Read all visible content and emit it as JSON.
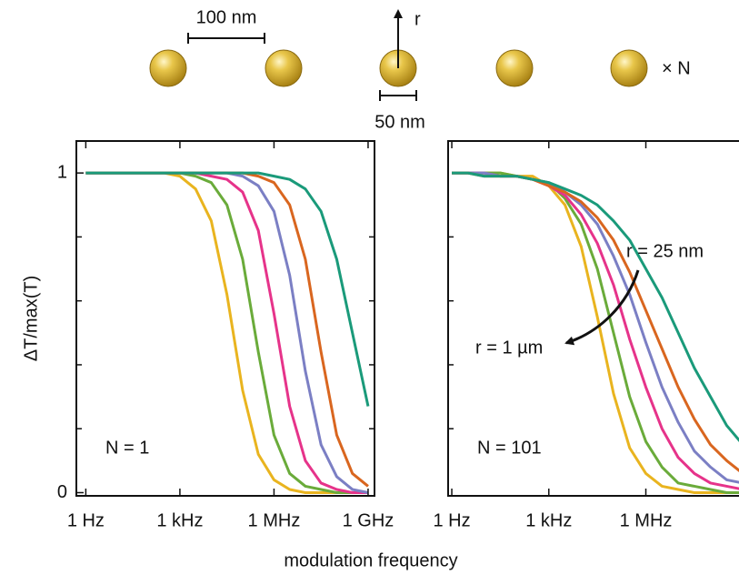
{
  "diagram": {
    "spacing_label": "100 nm",
    "diameter_label": "50 nm",
    "radius_label": "r",
    "count_label": "× N"
  },
  "chart_data": [
    {
      "type": "line",
      "ylabel": "ΔT/max(T)",
      "xlabel": "modulation frequency",
      "annotation": "N = 1",
      "xscale": "log",
      "xlim": [
        0.5,
        1600000000
      ],
      "ylim": [
        -0.01,
        1.1
      ],
      "xticks": [
        {
          "value": 1,
          "label": "1 Hz"
        },
        {
          "value": 1000,
          "label": "1 kHz"
        },
        {
          "value": 1000000,
          "label": "1 MHz"
        },
        {
          "value": 1000000000,
          "label": "1 GHz"
        }
      ],
      "yticks": [
        0,
        1
      ],
      "yminor": [
        0.2,
        0.4,
        0.6,
        0.8
      ],
      "x": [
        1,
        3.162,
        10,
        31.62,
        100,
        316.2,
        1000,
        3162,
        10000,
        31620,
        100000,
        316200,
        1000000,
        3162000,
        10000000,
        31620000,
        100000000,
        316200000,
        1000000000
      ],
      "series": [
        {
          "color": "#e9b41f",
          "values": [
            1,
            1,
            1,
            1,
            1,
            1,
            0.99,
            0.95,
            0.85,
            0.62,
            0.32,
            0.12,
            0.04,
            0.01,
            0,
            0,
            0,
            0,
            0
          ]
        },
        {
          "color": "#6aab3a",
          "values": [
            1,
            1,
            1,
            1,
            1,
            1,
            1,
            0.99,
            0.97,
            0.9,
            0.73,
            0.44,
            0.18,
            0.06,
            0.02,
            0.01,
            0,
            0,
            0
          ]
        },
        {
          "color": "#e6338a",
          "values": [
            1,
            1,
            1,
            1,
            1,
            1,
            1,
            1,
            0.99,
            0.98,
            0.94,
            0.82,
            0.56,
            0.27,
            0.1,
            0.03,
            0.01,
            0,
            0
          ]
        },
        {
          "color": "#7b7fc4",
          "values": [
            1,
            1,
            1,
            1,
            1,
            1,
            1,
            1,
            1,
            1,
            0.99,
            0.96,
            0.88,
            0.68,
            0.38,
            0.15,
            0.05,
            0.01,
            0
          ]
        },
        {
          "color": "#d9661f",
          "values": [
            1,
            1,
            1,
            1,
            1,
            1,
            1,
            1,
            1,
            1,
            1,
            0.99,
            0.97,
            0.9,
            0.73,
            0.44,
            0.18,
            0.06,
            0.02
          ]
        },
        {
          "color": "#1a9a7a",
          "values": [
            1,
            1,
            1,
            1,
            1,
            1,
            1,
            1,
            1,
            1,
            1,
            1,
            0.99,
            0.98,
            0.95,
            0.88,
            0.73,
            0.5,
            0.27
          ]
        }
      ]
    },
    {
      "type": "line",
      "annotation": "N = 101",
      "arrow_start_label": "r = 25 nm",
      "arrow_end_label": "r = 1 µm",
      "xscale": "log",
      "xlim": [
        0.77,
        1450000000
      ],
      "ylim": [
        -0.01,
        1.1
      ],
      "xticks": [
        {
          "value": 1,
          "label": "1 Hz"
        },
        {
          "value": 1000,
          "label": "1 kHz"
        },
        {
          "value": 1000000,
          "label": "1 MHz"
        }
      ],
      "yminor": [
        0.2,
        0.4,
        0.6,
        0.8
      ],
      "x": [
        1,
        3.162,
        10,
        31.62,
        100,
        316.2,
        1000,
        3162,
        10000,
        31620,
        100000,
        316200,
        1000000,
        3162000,
        10000000,
        31620000,
        100000000,
        316200000,
        1000000000
      ],
      "series": [
        {
          "color": "#e9b41f",
          "values": [
            1,
            1,
            1,
            1,
            0.99,
            0.99,
            0.96,
            0.9,
            0.77,
            0.55,
            0.31,
            0.14,
            0.06,
            0.02,
            0.01,
            0,
            0,
            0,
            0
          ]
        },
        {
          "color": "#6aab3a",
          "values": [
            1,
            1,
            1,
            1,
            0.99,
            0.98,
            0.97,
            0.92,
            0.84,
            0.7,
            0.5,
            0.3,
            0.16,
            0.08,
            0.03,
            0.02,
            0.01,
            0,
            0
          ]
        },
        {
          "color": "#e6338a",
          "values": [
            1,
            1,
            1,
            0.99,
            0.99,
            0.98,
            0.96,
            0.93,
            0.87,
            0.78,
            0.65,
            0.48,
            0.33,
            0.2,
            0.11,
            0.06,
            0.03,
            0.02,
            0.01
          ]
        },
        {
          "color": "#7b7fc4",
          "values": [
            1,
            1,
            1,
            0.99,
            0.99,
            0.98,
            0.97,
            0.94,
            0.9,
            0.84,
            0.74,
            0.62,
            0.47,
            0.33,
            0.22,
            0.13,
            0.08,
            0.04,
            0.03
          ]
        },
        {
          "color": "#d9661f",
          "values": [
            1,
            1,
            0.99,
            0.99,
            0.99,
            0.98,
            0.96,
            0.94,
            0.91,
            0.86,
            0.79,
            0.69,
            0.57,
            0.45,
            0.33,
            0.23,
            0.15,
            0.1,
            0.06
          ]
        },
        {
          "color": "#1a9a7a",
          "values": [
            1,
            1,
            0.99,
            0.99,
            0.99,
            0.98,
            0.97,
            0.95,
            0.93,
            0.9,
            0.85,
            0.79,
            0.7,
            0.61,
            0.5,
            0.39,
            0.3,
            0.21,
            0.15
          ]
        }
      ]
    }
  ]
}
